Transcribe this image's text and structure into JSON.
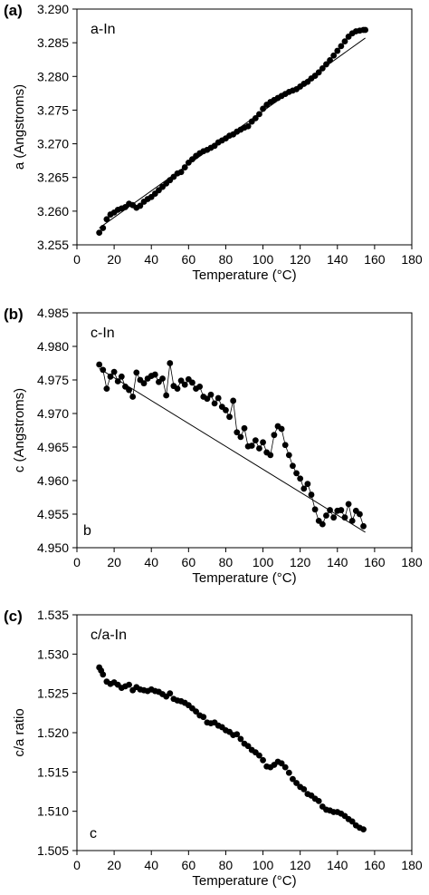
{
  "chart_data": [
    {
      "type": "scatter",
      "panel_label": "(a)",
      "inset_label": "a-In",
      "corner_label": "",
      "xlabel": "Temperature (°C)",
      "ylabel": "a (Angstroms)",
      "xlim": [
        0,
        180
      ],
      "ylim": [
        3.255,
        3.29
      ],
      "xticks": [
        "0",
        "20",
        "40",
        "60",
        "80",
        "100",
        "120",
        "140",
        "160",
        "180"
      ],
      "yticks": [
        "3.255",
        "3.260",
        "3.265",
        "3.270",
        "3.275",
        "3.280",
        "3.285",
        "3.290"
      ],
      "grid": false,
      "legend": "none",
      "connect_points": false,
      "fit_line": [
        [
          12,
          3.2575
        ],
        [
          155,
          3.2857
        ]
      ],
      "series": [
        {
          "x": [
            12,
            14,
            16,
            18,
            20,
            22,
            24,
            26,
            28,
            30,
            32,
            34,
            36,
            38,
            40,
            42,
            44,
            46,
            48,
            50,
            52,
            54,
            56,
            58,
            60,
            62,
            64,
            66,
            68,
            70,
            72,
            74,
            76,
            78,
            80,
            82,
            84,
            86,
            88,
            90,
            92,
            94,
            96,
            98,
            100,
            102,
            104,
            106,
            108,
            110,
            112,
            114,
            116,
            118,
            120,
            122,
            124,
            126,
            128,
            130,
            132,
            134,
            136,
            138,
            140,
            142,
            144,
            146,
            148,
            150,
            152,
            154,
            155
          ],
          "y": [
            3.2568,
            3.2575,
            3.2588,
            3.2595,
            3.2598,
            3.2602,
            3.2604,
            3.2606,
            3.2611,
            3.2609,
            3.2605,
            3.2608,
            3.2614,
            3.2618,
            3.2621,
            3.2626,
            3.2631,
            3.2636,
            3.2641,
            3.2646,
            3.2651,
            3.2656,
            3.2658,
            3.2665,
            3.2672,
            3.2677,
            3.2682,
            3.2686,
            3.2689,
            3.2691,
            3.2694,
            3.2697,
            3.2702,
            3.2705,
            3.2708,
            3.2712,
            3.2714,
            3.2718,
            3.2721,
            3.2724,
            3.2726,
            3.2733,
            3.2738,
            3.2744,
            3.2752,
            3.2758,
            3.2762,
            3.2765,
            3.2768,
            3.2771,
            3.2774,
            3.2777,
            3.2779,
            3.2781,
            3.2785,
            3.2789,
            3.2792,
            3.2797,
            3.2801,
            3.2806,
            3.2812,
            3.2818,
            3.2824,
            3.2831,
            3.2838,
            3.2845,
            3.2852,
            3.2859,
            3.2864,
            3.2867,
            3.2868,
            3.2869,
            3.2869
          ]
        }
      ]
    },
    {
      "type": "line",
      "panel_label": "(b)",
      "inset_label": "c-In",
      "corner_label": "b",
      "xlabel": "Temperature (°C)",
      "ylabel": "c (Angstroms)",
      "xlim": [
        0,
        180
      ],
      "ylim": [
        4.95,
        4.985
      ],
      "xticks": [
        "0",
        "20",
        "40",
        "60",
        "80",
        "100",
        "120",
        "140",
        "160",
        "180"
      ],
      "yticks": [
        "4.950",
        "4.955",
        "4.960",
        "4.965",
        "4.970",
        "4.975",
        "4.980",
        "4.985"
      ],
      "grid": false,
      "legend": "none",
      "connect_points": true,
      "fit_line": [
        [
          12,
          4.9767
        ],
        [
          155,
          4.9523
        ]
      ],
      "series": [
        {
          "x": [
            12,
            14,
            16,
            18,
            20,
            22,
            24,
            26,
            28,
            30,
            32,
            34,
            36,
            38,
            40,
            42,
            44,
            46,
            48,
            50,
            52,
            54,
            56,
            58,
            60,
            62,
            64,
            66,
            68,
            70,
            72,
            74,
            76,
            78,
            80,
            82,
            84,
            86,
            88,
            90,
            92,
            94,
            96,
            98,
            100,
            102,
            104,
            106,
            108,
            110,
            112,
            114,
            116,
            118,
            120,
            122,
            124,
            126,
            128,
            130,
            132,
            134,
            136,
            138,
            140,
            142,
            144,
            146,
            148,
            150,
            152,
            154
          ],
          "y": [
            4.9773,
            4.9765,
            4.9737,
            4.9755,
            4.9762,
            4.9748,
            4.9755,
            4.974,
            4.9735,
            4.9725,
            4.9761,
            4.975,
            4.9745,
            4.9752,
            4.9756,
            4.9758,
            4.9747,
            4.9752,
            4.9727,
            4.9775,
            4.9741,
            4.9737,
            4.9749,
            4.9743,
            4.9751,
            4.9746,
            4.9737,
            4.974,
            4.9725,
            4.9722,
            4.9728,
            4.9715,
            4.9723,
            4.971,
            4.9705,
            4.9695,
            4.9719,
            4.9672,
            4.9665,
            4.9678,
            4.9651,
            4.9652,
            4.966,
            4.9648,
            4.9657,
            4.9642,
            4.9638,
            4.9668,
            4.9681,
            4.9677,
            4.9653,
            4.9638,
            4.9622,
            4.9611,
            4.9603,
            4.9588,
            4.9595,
            4.9579,
            4.9557,
            4.954,
            4.9535,
            4.9548,
            4.9556,
            4.9545,
            4.9555,
            4.9556,
            4.9545,
            4.9565,
            4.954,
            4.9555,
            4.955,
            4.9532
          ]
        }
      ]
    },
    {
      "type": "scatter",
      "panel_label": "(c)",
      "inset_label": "c/a-In",
      "corner_label": "c",
      "xlabel": "Temperature (°C)",
      "ylabel": "c/a ratio",
      "xlim": [
        0,
        180
      ],
      "ylim": [
        1.505,
        1.535
      ],
      "xticks": [
        "0",
        "20",
        "40",
        "60",
        "80",
        "100",
        "120",
        "140",
        "160",
        "180"
      ],
      "yticks": [
        "1.505",
        "1.510",
        "1.515",
        "1.520",
        "1.525",
        "1.530",
        "1.535"
      ],
      "grid": false,
      "legend": "none",
      "connect_points": false,
      "fit_line": [],
      "series": [
        {
          "x": [
            12,
            13,
            14,
            16,
            18,
            20,
            22,
            24,
            26,
            28,
            30,
            32,
            34,
            36,
            38,
            40,
            42,
            44,
            46,
            48,
            50,
            52,
            54,
            56,
            58,
            60,
            62,
            64,
            66,
            68,
            70,
            72,
            74,
            76,
            78,
            80,
            82,
            84,
            86,
            88,
            90,
            92,
            94,
            96,
            98,
            100,
            102,
            104,
            106,
            108,
            110,
            112,
            114,
            116,
            118,
            120,
            122,
            124,
            126,
            128,
            130,
            132,
            134,
            136,
            138,
            140,
            142,
            144,
            146,
            148,
            150,
            152,
            154
          ],
          "y": [
            1.5283,
            1.5279,
            1.5274,
            1.5265,
            1.5262,
            1.5264,
            1.5261,
            1.5257,
            1.5259,
            1.5261,
            1.5254,
            1.5258,
            1.5255,
            1.5254,
            1.5253,
            1.5255,
            1.5253,
            1.5252,
            1.5249,
            1.5246,
            1.525,
            1.5243,
            1.5241,
            1.524,
            1.5238,
            1.5235,
            1.5231,
            1.5227,
            1.5222,
            1.522,
            1.5213,
            1.5212,
            1.5213,
            1.5209,
            1.5207,
            1.5203,
            1.5201,
            1.5197,
            1.5198,
            1.5192,
            1.5186,
            1.5183,
            1.5178,
            1.5175,
            1.5171,
            1.5165,
            1.5157,
            1.5156,
            1.5159,
            1.5163,
            1.5161,
            1.5156,
            1.5149,
            1.5141,
            1.5136,
            1.5131,
            1.5128,
            1.5122,
            1.512,
            1.5116,
            1.5113,
            1.5106,
            1.5102,
            1.5101,
            1.5099,
            1.5099,
            1.5097,
            1.5094,
            1.509,
            1.5087,
            1.5082,
            1.5079,
            1.5077
          ]
        }
      ]
    }
  ]
}
